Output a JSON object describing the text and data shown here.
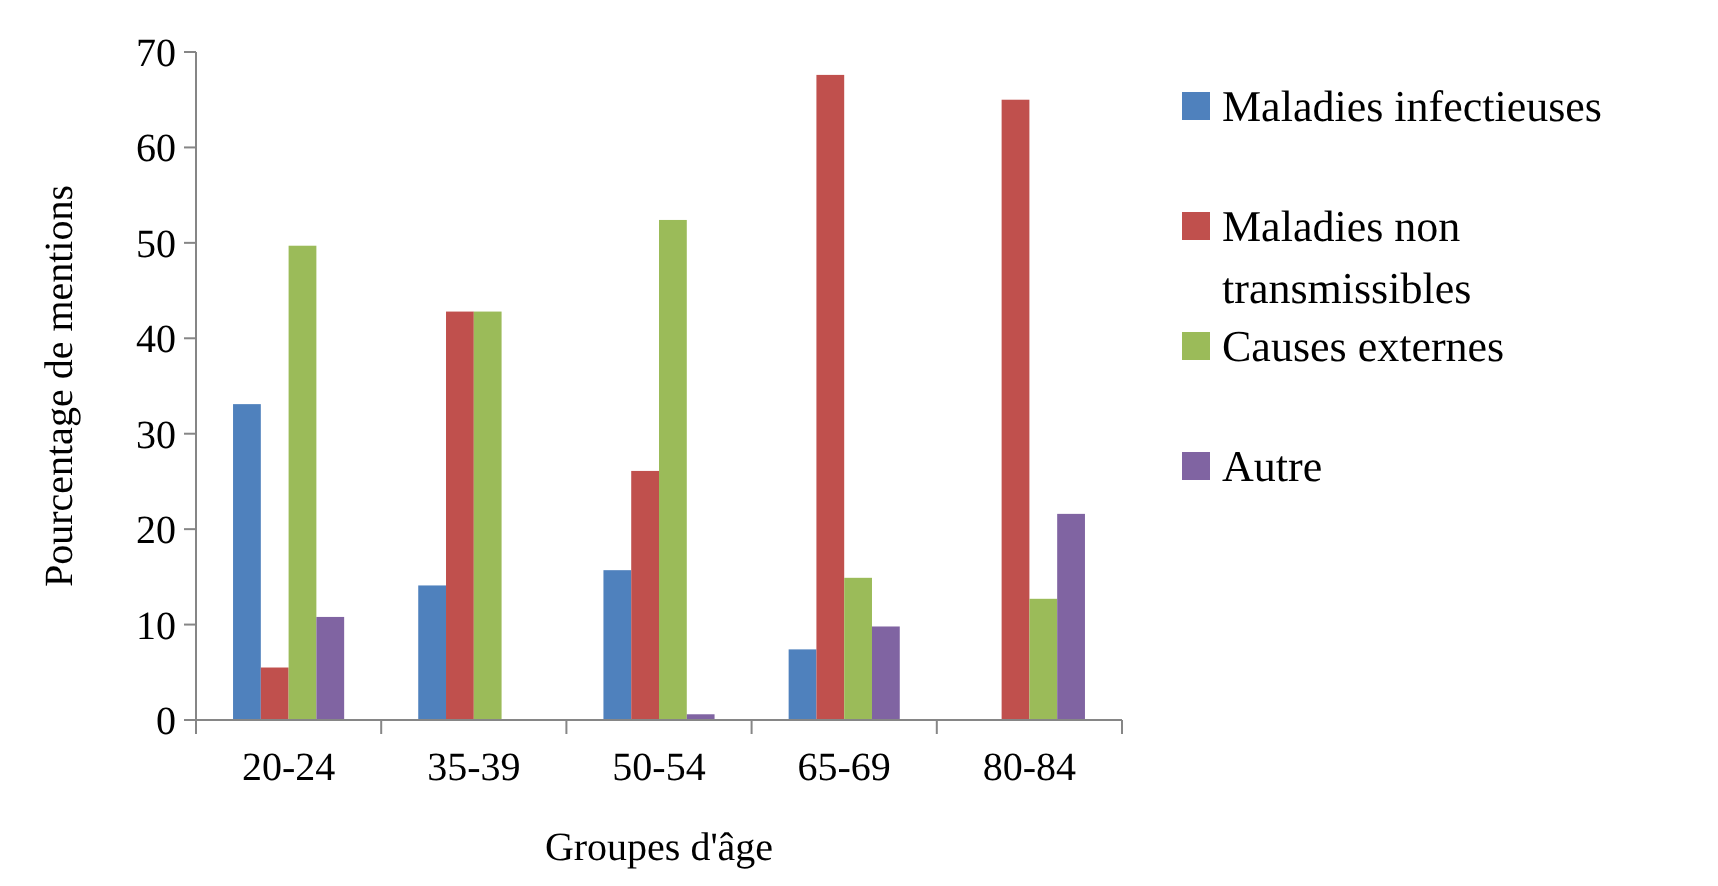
{
  "chart_data": {
    "type": "bar",
    "xlabel": "Groupes d'âge",
    "ylabel": "Pourcentage de mentions",
    "categories": [
      "20-24",
      "35-39",
      "50-54",
      "65-69",
      "80-84"
    ],
    "series": [
      {
        "name": "Maladies infectieuses",
        "color": "#4f81bd",
        "values": [
          33.1,
          14.1,
          15.7,
          7.4,
          0
        ]
      },
      {
        "name": "Maladies non transmissibles",
        "color": "#c0504d",
        "values": [
          5.5,
          42.8,
          26.1,
          67.6,
          65.0
        ]
      },
      {
        "name": "Causes externes",
        "color": "#9bbb59",
        "values": [
          49.7,
          42.8,
          52.4,
          14.9,
          12.7
        ]
      },
      {
        "name": "Autre",
        "color": "#8064a2",
        "values": [
          10.8,
          0,
          0.6,
          9.8,
          21.6
        ]
      }
    ],
    "ylim": [
      0,
      70
    ],
    "yticks": [
      0,
      10,
      20,
      30,
      40,
      50,
      60,
      70
    ],
    "grid": false,
    "legend": "right"
  }
}
